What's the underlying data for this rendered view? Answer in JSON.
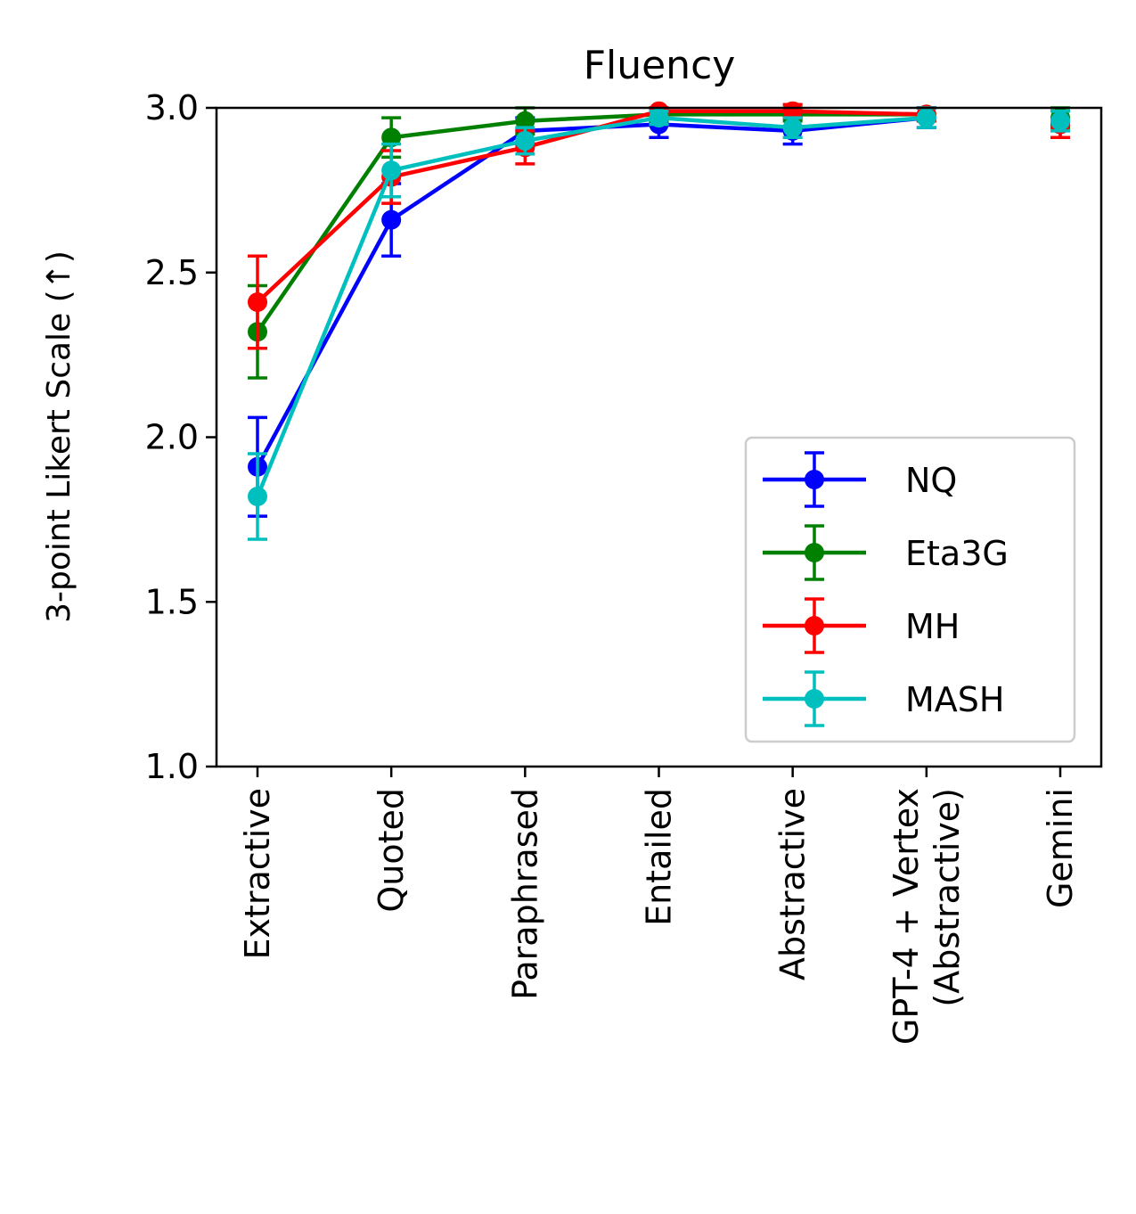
{
  "chart_data": {
    "type": "line",
    "title": "Fluency",
    "xlabel": "",
    "ylabel": "3-point Likert Scale (↑)",
    "ylim": [
      1.0,
      3.0
    ],
    "yticks": [
      "1.0",
      "1.5",
      "2.0",
      "2.5",
      "3.0"
    ],
    "yticks_values": [
      1.0,
      1.5,
      2.0,
      2.5,
      3.0
    ],
    "grid": false,
    "legend_position": "lower-right",
    "categories": [
      [
        "Extractive"
      ],
      [
        "Quoted"
      ],
      [
        "Paraphrased"
      ],
      [
        "Entailed"
      ],
      [
        "Abstractive"
      ],
      [
        "GPT-4 + Vertex",
        "(Abstractive)"
      ],
      [
        "Gemini"
      ]
    ],
    "series": [
      {
        "name": "NQ",
        "color": "#0000ff",
        "values": [
          1.91,
          2.66,
          2.93,
          2.95,
          2.93,
          2.97,
          2.95
        ],
        "errors": [
          0.15,
          0.11,
          0.04,
          0.04,
          0.04,
          0.03,
          0.04
        ],
        "connected": [
          true,
          true,
          true,
          true,
          true,
          true,
          false
        ]
      },
      {
        "name": "Eta3G",
        "color": "#008000",
        "values": [
          2.32,
          2.91,
          2.96,
          2.98,
          2.98,
          2.98,
          2.97
        ],
        "errors": [
          0.14,
          0.06,
          0.04,
          0.02,
          0.02,
          0.02,
          0.03
        ],
        "connected": [
          true,
          true,
          true,
          true,
          true,
          true,
          false
        ]
      },
      {
        "name": "MH",
        "color": "#ff0000",
        "values": [
          2.41,
          2.79,
          2.88,
          2.99,
          2.99,
          2.98,
          2.95
        ],
        "errors": [
          0.14,
          0.08,
          0.05,
          0.01,
          0.02,
          0.02,
          0.04
        ],
        "connected": [
          true,
          true,
          true,
          true,
          true,
          true,
          false
        ]
      },
      {
        "name": "MASH",
        "color": "#00bfbf",
        "values": [
          1.82,
          2.81,
          2.9,
          2.97,
          2.94,
          2.97,
          2.96
        ],
        "errors": [
          0.13,
          0.08,
          0.04,
          0.02,
          0.03,
          0.03,
          0.03
        ],
        "connected": [
          true,
          true,
          true,
          true,
          true,
          true,
          false
        ]
      }
    ]
  }
}
